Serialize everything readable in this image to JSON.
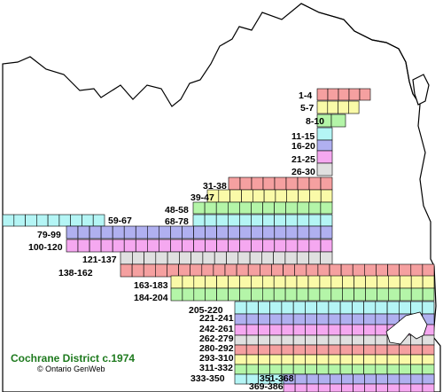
{
  "map": {
    "title": "Cochrane District c.1974",
    "credit": "© Ontario GenWeb",
    "colors": {
      "red": "#f5a0a0",
      "yellow": "#fafaa8",
      "green": "#b4f5a8",
      "blue": "#b0b0f0",
      "pink": "#f5a8f0",
      "gray": "#e0e0e0",
      "cyan": "#b4f5f5",
      "land": "#ffffff",
      "water": "#ffffff",
      "border": "#000000"
    },
    "rows": [
      {
        "label": "1-4",
        "color": "red"
      },
      {
        "label": "5-7",
        "color": "yellow"
      },
      {
        "label": "8-10",
        "color": "green"
      },
      {
        "label": "11-15",
        "color": "cyan"
      },
      {
        "label": "16-20",
        "color": "blue"
      },
      {
        "label": "21-25",
        "color": "pink"
      },
      {
        "label": "26-30",
        "color": "gray"
      },
      {
        "label": "31-38",
        "color": "red"
      },
      {
        "label": "39-47",
        "color": "yellow"
      },
      {
        "label": "48-58",
        "color": "green"
      },
      {
        "label": "68-78",
        "color": "cyan"
      },
      {
        "label": "59-67",
        "color": "cyan"
      },
      {
        "label": "79-99",
        "color": "blue"
      },
      {
        "label": "100-120",
        "color": "pink"
      },
      {
        "label": "121-137",
        "color": "gray"
      },
      {
        "label": "138-162",
        "color": "red"
      },
      {
        "label": "163-183",
        "color": "yellow"
      },
      {
        "label": "184-204",
        "color": "green"
      },
      {
        "label": "205-220",
        "color": "cyan"
      },
      {
        "label": "221-241",
        "color": "blue"
      },
      {
        "label": "242-261",
        "color": "pink"
      },
      {
        "label": "262-279",
        "color": "gray"
      },
      {
        "label": "280-292",
        "color": "red"
      },
      {
        "label": "293-310",
        "color": "yellow"
      },
      {
        "label": "311-332",
        "color": "green"
      },
      {
        "label": "333-350",
        "color": "cyan"
      },
      {
        "label": "351-368",
        "color": "blue"
      },
      {
        "label": "369-386",
        "color": "pink"
      }
    ]
  }
}
